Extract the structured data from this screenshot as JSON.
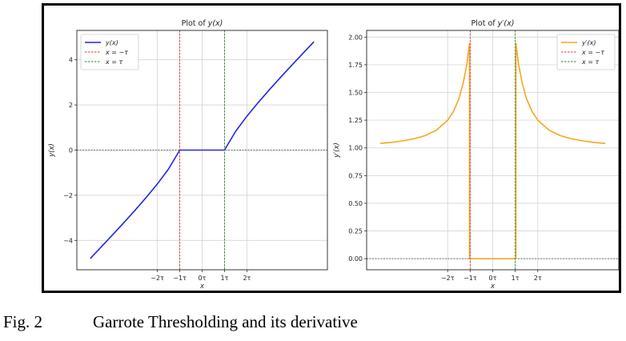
{
  "figure": {
    "label": "Fig. 2",
    "caption": "Garrote Thresholding and its derivative"
  },
  "chart_data": [
    {
      "type": "line",
      "title_prefix": "Plot of ",
      "title_math": "y(x)",
      "xlabel": "x",
      "ylabel": "y(x)",
      "tau": 1,
      "xlim": [
        -5.6,
        5.6
      ],
      "ylim": [
        -5.3,
        5.3
      ],
      "grid": true,
      "legend_position": "top-left",
      "xticks": [
        {
          "v": -2,
          "label": "−2τ"
        },
        {
          "v": -1,
          "label": "−1τ"
        },
        {
          "v": 0,
          "label": "0τ"
        },
        {
          "v": 1,
          "label": "1τ"
        },
        {
          "v": 2,
          "label": "2τ"
        }
      ],
      "yticks": [
        {
          "v": -4,
          "label": "−4"
        },
        {
          "v": -2,
          "label": "−2"
        },
        {
          "v": 0,
          "label": "0"
        },
        {
          "v": 2,
          "label": "2"
        },
        {
          "v": 4,
          "label": "4"
        }
      ],
      "series": [
        {
          "name": "y(x)",
          "color": "#2424e8",
          "style": "solid",
          "x": [
            -5,
            -4.5,
            -4,
            -3.5,
            -3,
            -2.5,
            -2,
            -1.5,
            -1,
            -1,
            1,
            1,
            1.5,
            2,
            2.5,
            3,
            3.5,
            4,
            4.5,
            5
          ],
          "y": [
            -4.8,
            -4.278,
            -3.75,
            -3.214,
            -2.667,
            -2.1,
            -1.5,
            -0.833,
            0,
            0,
            0,
            0,
            0.833,
            1.5,
            2.1,
            2.667,
            3.214,
            3.75,
            4.278,
            4.8
          ]
        },
        {
          "name": "x = −τ",
          "color": "#e03030",
          "style": "dashed",
          "vline": -1
        },
        {
          "name": "x = τ",
          "color": "#2a8a2a",
          "style": "dashed",
          "vline": 1
        }
      ],
      "hline": 0
    },
    {
      "type": "line",
      "title_prefix": "Plot of ",
      "title_math": "y′(x)",
      "xlabel": "x",
      "ylabel": "y′(x)",
      "tau": 1,
      "xlim": [
        -5.6,
        5.6
      ],
      "ylim": [
        -0.1,
        2.06
      ],
      "grid": true,
      "legend_position": "top-right",
      "xticks": [
        {
          "v": -2,
          "label": "−2τ"
        },
        {
          "v": -1,
          "label": "−1τ"
        },
        {
          "v": 0,
          "label": "0τ"
        },
        {
          "v": 1,
          "label": "1τ"
        },
        {
          "v": 2,
          "label": "2τ"
        }
      ],
      "yticks": [
        {
          "v": 0,
          "label": "0.00"
        },
        {
          "v": 0.25,
          "label": "0.25"
        },
        {
          "v": 0.5,
          "label": "0.50"
        },
        {
          "v": 0.75,
          "label": "0.75"
        },
        {
          "v": 1.0,
          "label": "1.00"
        },
        {
          "v": 1.25,
          "label": "1.25"
        },
        {
          "v": 1.5,
          "label": "1.50"
        },
        {
          "v": 1.75,
          "label": "1.75"
        },
        {
          "v": 2.0,
          "label": "2.00"
        }
      ],
      "series": [
        {
          "name": "y′(x)",
          "color": "#f5a623",
          "style": "solid",
          "x": [
            -5,
            -4.5,
            -4,
            -3.5,
            -3,
            -2.5,
            -2,
            -1.75,
            -1.5,
            -1.3,
            -1.15,
            -1.03,
            -1.03,
            1.03,
            1.03,
            1.15,
            1.3,
            1.5,
            1.75,
            2,
            2.5,
            3,
            3.5,
            4,
            4.5,
            5
          ],
          "y": [
            1.04,
            1.049,
            1.063,
            1.082,
            1.111,
            1.16,
            1.25,
            1.327,
            1.444,
            1.592,
            1.756,
            1.943,
            0,
            0,
            1.943,
            1.756,
            1.592,
            1.444,
            1.327,
            1.25,
            1.16,
            1.111,
            1.082,
            1.063,
            1.049,
            1.04
          ]
        },
        {
          "name": "x = −τ",
          "color": "#e03030",
          "style": "dashed",
          "vline": -1
        },
        {
          "name": "x = τ",
          "color": "#2a8a2a",
          "style": "dashed",
          "vline": 1
        }
      ],
      "hline": 0
    }
  ]
}
